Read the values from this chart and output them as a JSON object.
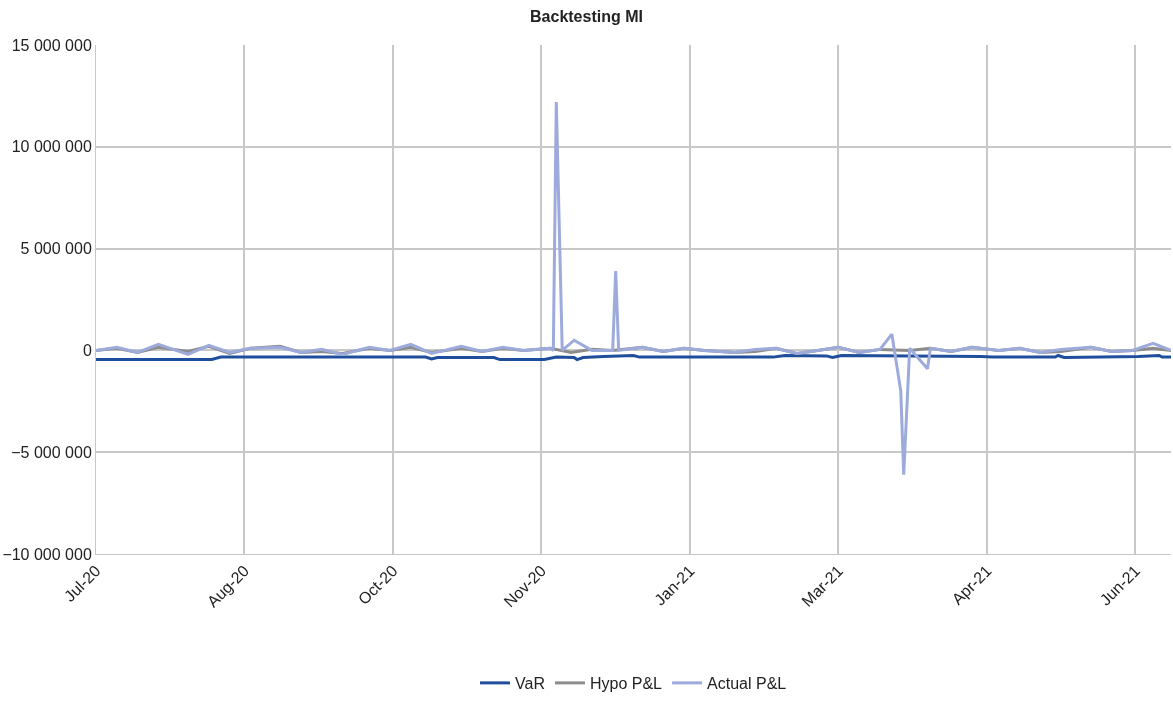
{
  "chart_data": {
    "type": "line",
    "title": "Backtesting MI",
    "xlim": [
      "2020-07-01",
      "2021-06-28"
    ],
    "xticks": [
      {
        "value": "2020-07-01",
        "label": "Jul-20"
      },
      {
        "value": "2020-08-20",
        "label": "Aug-20"
      },
      {
        "value": "2020-10-09",
        "label": "Oct-20"
      },
      {
        "value": "2020-11-28",
        "label": "Nov-20"
      },
      {
        "value": "2021-01-17",
        "label": "Jan-21"
      },
      {
        "value": "2021-03-08",
        "label": "Mar-21"
      },
      {
        "value": "2021-04-27",
        "label": "Apr-21"
      },
      {
        "value": "2021-06-16",
        "label": "Jun-21"
      }
    ],
    "ylim": [
      -10000000,
      15000000
    ],
    "yticks": [
      {
        "value": -10000000,
        "label": "−10 000 000"
      },
      {
        "value": -5000000,
        "label": "−5 000 000"
      },
      0,
      {
        "value": 5000000,
        "label": "5 000 000"
      },
      {
        "value": 10000000,
        "label": "10 000 000"
      },
      {
        "value": 15000000,
        "label": "15 000 000"
      }
    ],
    "grid": true,
    "legend": "bottom",
    "line_style": "solid",
    "marker": "none",
    "series": [
      {
        "name": "VaR",
        "color": "#1f4e9c",
        "x": [
          "2020-07-01",
          "2020-08-09",
          "2020-08-12",
          "2020-10-20",
          "2020-10-22",
          "2020-10-24",
          "2020-11-12",
          "2020-11-14",
          "2020-11-29",
          "2020-12-03",
          "2020-12-09",
          "2020-12-10",
          "2020-12-12",
          "2020-12-19",
          "2020-12-29",
          "2020-12-31",
          "2021-02-14",
          "2021-02-18",
          "2021-03-04",
          "2021-03-06",
          "2021-03-09",
          "2021-04-25",
          "2021-04-29",
          "2021-05-20",
          "2021-05-21",
          "2021-05-23",
          "2021-06-17",
          "2021-06-24",
          "2021-06-25",
          "2021-06-28"
        ],
        "values": [
          -450000,
          -450000,
          -330000,
          -330000,
          -420000,
          -350000,
          -350000,
          -450000,
          -450000,
          -330000,
          -350000,
          -450000,
          -350000,
          -300000,
          -250000,
          -330000,
          -330000,
          -250000,
          -270000,
          -350000,
          -250000,
          -300000,
          -330000,
          -330000,
          -250000,
          -350000,
          -300000,
          -250000,
          -330000,
          -330000
        ]
      },
      {
        "name": "Hypo P&L",
        "color": "#8c8c8c",
        "x": [
          "2020-07-01",
          "2020-07-08",
          "2020-07-15",
          "2020-07-22",
          "2020-08-01",
          "2020-08-08",
          "2020-08-15",
          "2020-08-22",
          "2020-09-01",
          "2020-09-08",
          "2020-09-15",
          "2020-09-22",
          "2020-10-01",
          "2020-10-08",
          "2020-10-15",
          "2020-10-22",
          "2020-11-01",
          "2020-11-08",
          "2020-11-15",
          "2020-11-22",
          "2020-12-01",
          "2020-12-08",
          "2020-12-15",
          "2020-12-22",
          "2021-01-01",
          "2021-01-08",
          "2021-01-15",
          "2021-01-22",
          "2021-02-01",
          "2021-02-08",
          "2021-02-15",
          "2021-02-22",
          "2021-03-01",
          "2021-03-08",
          "2021-03-15",
          "2021-03-22",
          "2021-04-01",
          "2021-04-08",
          "2021-04-15",
          "2021-04-22",
          "2021-05-01",
          "2021-05-08",
          "2021-05-15",
          "2021-05-22",
          "2021-06-01",
          "2021-06-08",
          "2021-06-15",
          "2021-06-22",
          "2021-06-28"
        ],
        "values": [
          0,
          100000,
          -100000,
          150000,
          -50000,
          200000,
          -150000,
          100000,
          200000,
          -100000,
          -50000,
          -150000,
          100000,
          0,
          150000,
          -100000,
          100000,
          -50000,
          100000,
          0,
          100000,
          -100000,
          50000,
          0,
          150000,
          -50000,
          100000,
          0,
          -100000,
          -50000,
          100000,
          -150000,
          0,
          150000,
          -100000,
          50000,
          0,
          100000,
          -50000,
          150000,
          0,
          100000,
          -100000,
          -50000,
          150000,
          -50000,
          0,
          100000,
          0
        ]
      },
      {
        "name": "Actual P&L",
        "color": "#9dabdc",
        "x": [
          "2020-07-01",
          "2020-07-08",
          "2020-07-15",
          "2020-07-22",
          "2020-08-01",
          "2020-08-08",
          "2020-08-15",
          "2020-08-22",
          "2020-09-01",
          "2020-09-08",
          "2020-09-15",
          "2020-09-22",
          "2020-10-01",
          "2020-10-08",
          "2020-10-15",
          "2020-10-22",
          "2020-11-01",
          "2020-11-08",
          "2020-11-15",
          "2020-11-22",
          "2020-12-01",
          "2020-12-02",
          "2020-12-03",
          "2020-12-05",
          "2020-12-09",
          "2020-12-15",
          "2020-12-22",
          "2020-12-23",
          "2020-12-24",
          "2021-01-01",
          "2021-01-08",
          "2021-01-15",
          "2021-01-22",
          "2021-02-01",
          "2021-02-08",
          "2021-02-15",
          "2021-02-22",
          "2021-03-01",
          "2021-03-08",
          "2021-03-15",
          "2021-03-22",
          "2021-03-26",
          "2021-03-29",
          "2021-03-30",
          "2021-04-01",
          "2021-04-07",
          "2021-04-08",
          "2021-04-15",
          "2021-04-22",
          "2021-05-01",
          "2021-05-08",
          "2021-05-15",
          "2021-05-22",
          "2021-06-01",
          "2021-06-08",
          "2021-06-15",
          "2021-06-22",
          "2021-06-28"
        ],
        "values": [
          0,
          150000,
          -100000,
          300000,
          -200000,
          250000,
          -100000,
          100000,
          150000,
          -100000,
          50000,
          -200000,
          150000,
          0,
          300000,
          -150000,
          200000,
          -50000,
          150000,
          0,
          100000,
          0,
          12200000,
          0,
          500000,
          0,
          0,
          3900000,
          0,
          150000,
          -50000,
          100000,
          0,
          -100000,
          50000,
          100000,
          -150000,
          0,
          150000,
          -100000,
          50000,
          800000,
          -2000000,
          -6100000,
          100000,
          -900000,
          100000,
          -50000,
          150000,
          0,
          100000,
          -100000,
          50000,
          150000,
          -50000,
          0,
          350000,
          0
        ]
      }
    ]
  }
}
